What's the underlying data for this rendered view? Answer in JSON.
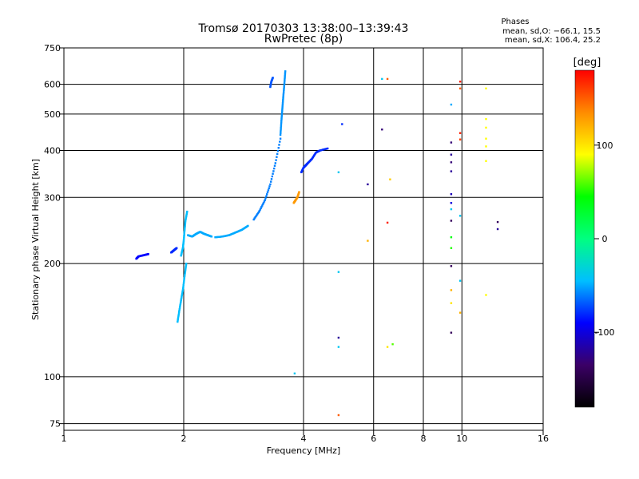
{
  "chart_data": {
    "type": "scatter",
    "title": "Tromsø 20170303 13:38:00–13:39:43",
    "subtitle": "RwPretec (8p)",
    "xlabel": "Frequency [MHz]",
    "ylabel": "Stationary phase Virtual Height [km]",
    "x_scale": "log2",
    "y_scale": "log",
    "xlim": [
      1,
      16
    ],
    "ylim": [
      72,
      750
    ],
    "x_ticks": [
      1,
      2,
      4,
      6,
      8,
      10,
      16
    ],
    "y_ticks": [
      75,
      100,
      200,
      300,
      400,
      500,
      600,
      750
    ],
    "grid": true,
    "phases_box": {
      "title": "Phases",
      "line1": "mean, sd,O: −66.1, 15.5",
      "line2": "mean, sd,X: 106.4, 25.2"
    },
    "colorbar": {
      "label": "[deg]",
      "range": [
        -180,
        180
      ],
      "ticks": [
        100,
        0,
        -100
      ],
      "colormap": "rainbow",
      "colors": [
        "#000000",
        "#3b0066",
        "#0000ff",
        "#00bfff",
        "#00ff80",
        "#00ff00",
        "#ffff00",
        "#ff8c00",
        "#ff0000"
      ]
    },
    "traces": [
      {
        "x": [
          1.52,
          1.54,
          1.57,
          1.6,
          1.63
        ],
        "y": [
          206,
          209,
          210,
          211,
          212
        ],
        "phase": -90
      },
      {
        "x": [
          1.86,
          1.88,
          1.9,
          1.92
        ],
        "y": [
          214,
          216,
          218,
          220
        ],
        "phase": -80
      },
      {
        "x": [
          1.93,
          1.95,
          1.97,
          1.99,
          2.01,
          2.03
        ],
        "y": [
          140,
          150,
          160,
          170,
          185,
          200
        ],
        "phase": -45
      },
      {
        "x": [
          1.97,
          1.99,
          2.0,
          2.01,
          2.02,
          2.04
        ],
        "y": [
          210,
          220,
          230,
          245,
          260,
          275
        ],
        "phase": -45
      },
      {
        "x": [
          2.05,
          2.1,
          2.15,
          2.2,
          2.25,
          2.3,
          2.35
        ],
        "y": [
          238,
          236,
          240,
          243,
          240,
          238,
          236
        ],
        "phase": -50
      },
      {
        "x": [
          2.4,
          2.5,
          2.6,
          2.7,
          2.8,
          2.9
        ],
        "y": [
          235,
          236,
          238,
          242,
          246,
          252
        ],
        "phase": -50
      },
      {
        "x": [
          3.0,
          3.1,
          3.2,
          3.3,
          3.4,
          3.5
        ],
        "y": [
          262,
          276,
          295,
          325,
          370,
          430
        ],
        "phase": -60
      },
      {
        "x": [
          3.5,
          3.52,
          3.54,
          3.56,
          3.58,
          3.6
        ],
        "y": [
          440,
          480,
          520,
          560,
          600,
          650
        ],
        "phase": -55
      },
      {
        "x": [
          3.3,
          3.32,
          3.35
        ],
        "y": [
          590,
          610,
          625
        ],
        "phase": -70
      },
      {
        "x": [
          3.95,
          4.0,
          4.05,
          4.1,
          4.2,
          4.3,
          4.4,
          4.6
        ],
        "y": [
          350,
          360,
          365,
          370,
          380,
          395,
          400,
          405
        ],
        "phase": -80
      },
      {
        "x": [
          3.78,
          3.82,
          3.86,
          3.9
        ],
        "y": [
          290,
          295,
          300,
          310
        ],
        "phase": 130
      }
    ],
    "isolated_points": [
      {
        "x": 3.8,
        "y": 102,
        "phase": -40
      },
      {
        "x": 4.9,
        "y": 79,
        "phase": 150
      },
      {
        "x": 5.0,
        "y": 470,
        "phase": -80
      },
      {
        "x": 4.9,
        "y": 127,
        "phase": -120
      },
      {
        "x": 4.9,
        "y": 120,
        "phase": -40
      },
      {
        "x": 4.9,
        "y": 190,
        "phase": -40
      },
      {
        "x": 4.9,
        "y": 350,
        "phase": -40
      },
      {
        "x": 5.8,
        "y": 325,
        "phase": -120
      },
      {
        "x": 5.8,
        "y": 230,
        "phase": 120
      },
      {
        "x": 6.3,
        "y": 620,
        "phase": -40
      },
      {
        "x": 6.5,
        "y": 620,
        "phase": 150
      },
      {
        "x": 6.3,
        "y": 455,
        "phase": -130
      },
      {
        "x": 6.6,
        "y": 335,
        "phase": 110
      },
      {
        "x": 6.5,
        "y": 257,
        "phase": 170
      },
      {
        "x": 6.5,
        "y": 120,
        "phase": 100
      },
      {
        "x": 6.7,
        "y": 122,
        "phase": 60
      },
      {
        "x": 9.4,
        "y": 420,
        "phase": -130
      },
      {
        "x": 9.4,
        "y": 390,
        "phase": -120
      },
      {
        "x": 9.4,
        "y": 372,
        "phase": -130
      },
      {
        "x": 9.4,
        "y": 352,
        "phase": -120
      },
      {
        "x": 9.4,
        "y": 306,
        "phase": -110
      },
      {
        "x": 9.4,
        "y": 290,
        "phase": -100
      },
      {
        "x": 9.4,
        "y": 279,
        "phase": -40
      },
      {
        "x": 9.4,
        "y": 260,
        "phase": -140
      },
      {
        "x": 9.4,
        "y": 235,
        "phase": 40
      },
      {
        "x": 9.4,
        "y": 220,
        "phase": 50
      },
      {
        "x": 9.4,
        "y": 197,
        "phase": -140
      },
      {
        "x": 9.4,
        "y": 170,
        "phase": 120
      },
      {
        "x": 9.4,
        "y": 157,
        "phase": 100
      },
      {
        "x": 9.4,
        "y": 131,
        "phase": -140
      },
      {
        "x": 9.4,
        "y": 530,
        "phase": -50
      },
      {
        "x": 9.9,
        "y": 610,
        "phase": 170
      },
      {
        "x": 9.9,
        "y": 585,
        "phase": 150
      },
      {
        "x": 9.9,
        "y": 445,
        "phase": 170
      },
      {
        "x": 9.9,
        "y": 428,
        "phase": 160
      },
      {
        "x": 9.9,
        "y": 268,
        "phase": -40
      },
      {
        "x": 9.9,
        "y": 180,
        "phase": -40
      },
      {
        "x": 9.9,
        "y": 148,
        "phase": 120
      },
      {
        "x": 11.5,
        "y": 585,
        "phase": 90
      },
      {
        "x": 11.5,
        "y": 485,
        "phase": 90
      },
      {
        "x": 11.5,
        "y": 460,
        "phase": 90
      },
      {
        "x": 11.5,
        "y": 430,
        "phase": 90
      },
      {
        "x": 11.5,
        "y": 410,
        "phase": 90
      },
      {
        "x": 11.5,
        "y": 375,
        "phase": 90
      },
      {
        "x": 11.5,
        "y": 165,
        "phase": 90
      },
      {
        "x": 12.3,
        "y": 258,
        "phase": -140
      },
      {
        "x": 12.3,
        "y": 247,
        "phase": -120
      }
    ]
  }
}
